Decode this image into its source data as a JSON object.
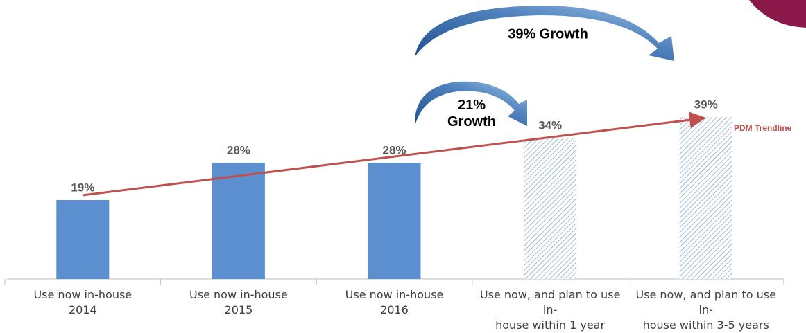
{
  "chart_data": {
    "type": "bar",
    "categories": [
      "Use now in-house\n2014",
      "Use now in-house\n2015",
      "Use now in-house\n2016",
      "Use now, and plan to use in-\nhouse within 1 year",
      "Use now, and plan to use in-\nhouse within 3-5 years"
    ],
    "values": [
      19,
      28,
      28,
      34,
      39
    ],
    "value_labels": [
      "19%",
      "28%",
      "28%",
      "34%",
      "39%"
    ],
    "color": "#5b8fd0",
    "hatch": [
      false,
      false,
      false,
      true,
      true
    ],
    "annotations": [
      "39% Growth",
      "21%\nGrowth",
      "PDM Trendline"
    ]
  }
}
